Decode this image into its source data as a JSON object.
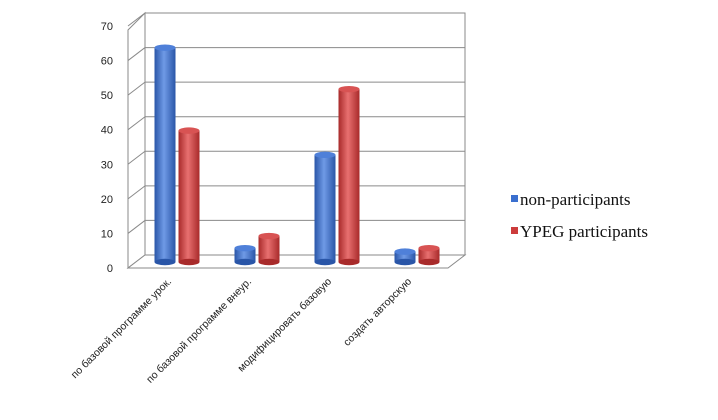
{
  "chart_data": {
    "type": "bar",
    "categories": [
      "по базовой программе урок.",
      "по базовой программе внеур.",
      "модифицировать базовую",
      "создать авторскую"
    ],
    "series": [
      {
        "name": "non-participants",
        "values": [
          62,
          4,
          31,
          3
        ],
        "color": "#3a6fcf"
      },
      {
        "name": "YPEG participants",
        "values": [
          38,
          7.5,
          50,
          4
        ],
        "color": "#cc3b3b"
      }
    ],
    "ylim": [
      0,
      70
    ],
    "yticks": [
      0,
      10,
      20,
      30,
      40,
      50,
      60,
      70
    ],
    "grid": true,
    "three_d": true,
    "legend_position": "right"
  }
}
